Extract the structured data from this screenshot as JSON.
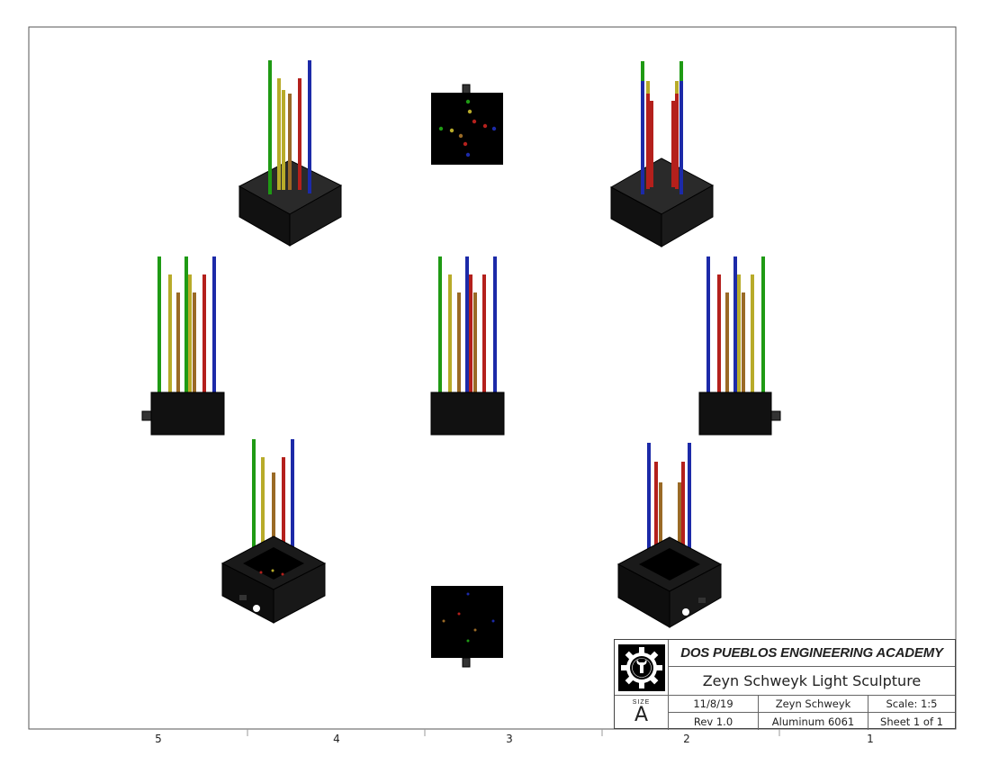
{
  "title_block": {
    "organization": "DOS PUEBLOS ENGINEERING ACADEMY",
    "drawing_title": "Zeyn Schweyk Light Sculpture",
    "size_label": "SIZE",
    "size_value": "A",
    "date": "11/8/19",
    "author": "Zeyn Schweyk",
    "scale": "Scale: 1:5",
    "revision": "Rev 1.0",
    "material": "Aluminum 6061",
    "sheet": "Sheet 1 of 1",
    "logo_icon": "gear-wrench-logo-icon"
  },
  "zone_labels": [
    "5",
    "4",
    "3",
    "2",
    "1"
  ],
  "colors": {
    "green": "#1f9a14",
    "yellow": "#b8ab2a",
    "orange": "#9a6a26",
    "red": "#b4201c",
    "blue": "#1c2aa8",
    "base": "#111111"
  }
}
